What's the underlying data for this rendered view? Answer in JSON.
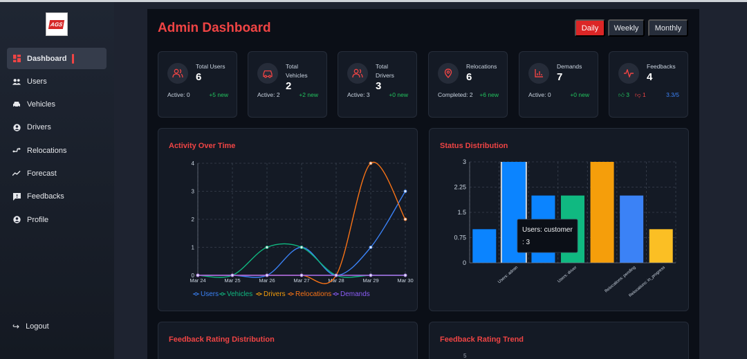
{
  "brand": {
    "logo_text": "AGS"
  },
  "sidebar": {
    "items": [
      {
        "label": "Dashboard",
        "icon": "dashboard-icon",
        "active": true
      },
      {
        "label": "Users",
        "icon": "users-icon"
      },
      {
        "label": "Vehicles",
        "icon": "car-icon"
      },
      {
        "label": "Drivers",
        "icon": "driver-icon"
      },
      {
        "label": "Relocations",
        "icon": "route-icon"
      },
      {
        "label": "Forecast",
        "icon": "trend-icon"
      },
      {
        "label": "Feedbacks",
        "icon": "feedback-icon"
      },
      {
        "label": "Profile",
        "icon": "profile-icon"
      }
    ],
    "logout_label": "Logout"
  },
  "header": {
    "title": "Admin Dashboard",
    "periods": [
      "Daily",
      "Weekly",
      "Monthly"
    ],
    "active_period": "Daily"
  },
  "cards": [
    {
      "label": "Total Users",
      "value": "6",
      "foot_left": "Active: 0",
      "foot_right": "+5 new",
      "icon": "users-icon"
    },
    {
      "label": "Total Vehicles",
      "value": "2",
      "foot_left": "Active: 2",
      "foot_right": "+2 new",
      "icon": "car-icon"
    },
    {
      "label": "Total Drivers",
      "value": "3",
      "foot_left": "Active: 3",
      "foot_right": "+0 new",
      "icon": "users-icon"
    },
    {
      "label": "Relocations",
      "value": "6",
      "foot_left": "Completed: 2",
      "foot_right": "+6 new",
      "icon": "location-pin-icon"
    },
    {
      "label": "Demands",
      "value": "7",
      "foot_left": "Active: 0",
      "foot_right": "+0 new",
      "icon": "bar-chart-icon"
    },
    {
      "label": "Feedbacks",
      "value": "4",
      "thumbs_up": "3",
      "thumbs_down": "1",
      "rating": "3.3/5",
      "icon": "activity-icon"
    }
  ],
  "colors": {
    "accent": "#ef4444",
    "users": "#3b82f6",
    "vehicles": "#10b981",
    "drivers": "#f59e0b",
    "relocations": "#f97316",
    "demands": "#8b5cf6"
  },
  "panels": {
    "activity_title": "Activity Over Time",
    "status_title": "Status Distribution",
    "rating_dist_title": "Feedback Rating Distribution",
    "rating_trend_title": "Feedback Rating Trend",
    "rating_trend_tick": "5"
  },
  "tooltip": {
    "line1": "Users: customer",
    "line2": ": 3"
  },
  "chart_data": [
    {
      "type": "line",
      "title": "Activity Over Time",
      "categories": [
        "Mar 24",
        "Mar 25",
        "Mar 26",
        "Mar 27",
        "Mar 28",
        "Mar 29",
        "Mar 30"
      ],
      "ylim": [
        0,
        4
      ],
      "yticks": [
        0,
        1,
        2,
        3,
        4
      ],
      "grid": true,
      "legend": "bottom",
      "series": [
        {
          "name": "Users",
          "color": "#3b82f6",
          "values": [
            0,
            0,
            0,
            1,
            0,
            1,
            3
          ]
        },
        {
          "name": "Vehicles",
          "color": "#10b981",
          "values": [
            0,
            0,
            1,
            1,
            0,
            0,
            0
          ]
        },
        {
          "name": "Drivers",
          "color": "#f59e0b",
          "values": [
            0,
            0,
            0,
            0,
            0,
            0,
            0
          ]
        },
        {
          "name": "Relocations",
          "color": "#f97316",
          "values": [
            0,
            0,
            0,
            0,
            0,
            4,
            2
          ]
        },
        {
          "name": "Demands",
          "color": "#8b5cf6",
          "values": [
            0,
            0,
            0,
            0,
            0,
            0,
            0
          ]
        }
      ]
    },
    {
      "type": "bar",
      "title": "Status Distribution",
      "ylim": [
        0,
        3
      ],
      "yticks": [
        0,
        0.75,
        1.5,
        2.25,
        3
      ],
      "grid": true,
      "bars": [
        {
          "value": 1,
          "color": "#0b84ff",
          "label": ""
        },
        {
          "value": 3,
          "color": "#0b84ff",
          "label": "Users: admin",
          "highlight": true
        },
        {
          "value": 2,
          "color": "#0b84ff",
          "label": ""
        },
        {
          "value": 2,
          "color": "#10b981",
          "label": "Users: driver"
        },
        {
          "value": 3,
          "color": "#f59e0b",
          "label": ""
        },
        {
          "value": 2,
          "color": "#3b82f6",
          "label": "Relocations: pending"
        },
        {
          "value": 1,
          "color": "#fbbf24",
          "label": "Relocations: in_progress"
        }
      ]
    }
  ]
}
